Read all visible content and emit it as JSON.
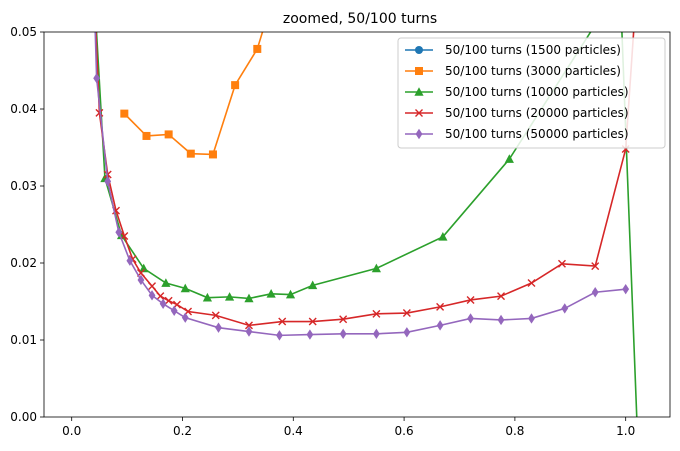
{
  "chart_data": {
    "type": "line",
    "title": "zoomed, 50/100 turns",
    "xlabel": "",
    "ylabel": "",
    "xlim": [
      -0.05,
      1.08
    ],
    "ylim": [
      0.0,
      0.05
    ],
    "x_ticks": [
      0.0,
      0.2,
      0.4,
      0.6,
      0.8,
      1.0
    ],
    "x_tick_labels": [
      "0.0",
      "0.2",
      "0.4",
      "0.6",
      "0.8",
      "1.0"
    ],
    "y_ticks": [
      0.0,
      0.01,
      0.02,
      0.03,
      0.04,
      0.05
    ],
    "y_tick_labels": [
      "0.00",
      "0.01",
      "0.02",
      "0.03",
      "0.04",
      "0.05"
    ],
    "grid": false,
    "legend_position": "top-right",
    "series": [
      {
        "name": "50/100 turns (1500 particles)",
        "color": "#1f77b4",
        "marker": "circle",
        "x": [],
        "y": []
      },
      {
        "name": "50/100 turns (3000 particles)",
        "color": "#ff7f0e",
        "marker": "square",
        "x": [
          0.095,
          0.135,
          0.175,
          0.215,
          0.255,
          0.295,
          0.335,
          0.37
        ],
        "y": [
          0.0394,
          0.0365,
          0.0367,
          0.0342,
          0.0341,
          0.0431,
          0.0478,
          0.056
        ]
      },
      {
        "name": "50/100 turns (10000 particles)",
        "color": "#2ca02c",
        "marker": "triangle",
        "x": [
          0.04,
          0.06,
          0.09,
          0.13,
          0.17,
          0.205,
          0.245,
          0.285,
          0.32,
          0.36,
          0.395,
          0.435,
          0.55,
          0.67,
          0.79,
          0.99,
          1.02
        ],
        "y": [
          0.056,
          0.031,
          0.0236,
          0.0193,
          0.0174,
          0.0167,
          0.0155,
          0.0156,
          0.0154,
          0.016,
          0.0159,
          0.0171,
          0.0193,
          0.0234,
          0.0335,
          0.056,
          0.0
        ]
      },
      {
        "name": "50/100 turns (20000 particles)",
        "color": "#d62728",
        "marker": "x",
        "x": [
          0.04,
          0.05,
          0.065,
          0.08,
          0.095,
          0.11,
          0.125,
          0.145,
          0.16,
          0.175,
          0.19,
          0.21,
          0.26,
          0.32,
          0.38,
          0.435,
          0.49,
          0.55,
          0.605,
          0.665,
          0.72,
          0.775,
          0.83,
          0.885,
          0.945,
          1.0,
          1.02
        ],
        "y": [
          0.056,
          0.0395,
          0.0315,
          0.0268,
          0.0235,
          0.0205,
          0.0187,
          0.017,
          0.0157,
          0.0151,
          0.0146,
          0.0137,
          0.0132,
          0.0119,
          0.0124,
          0.0124,
          0.0127,
          0.0134,
          0.0135,
          0.0143,
          0.0152,
          0.0157,
          0.0174,
          0.0199,
          0.0196,
          0.0348,
          0.056
        ]
      },
      {
        "name": "50/100 turns (50000 particles)",
        "color": "#9467bd",
        "marker": "diamond",
        "x": [
          0.04,
          0.045,
          0.065,
          0.085,
          0.105,
          0.125,
          0.145,
          0.165,
          0.185,
          0.205,
          0.265,
          0.32,
          0.375,
          0.43,
          0.49,
          0.55,
          0.605,
          0.665,
          0.72,
          0.775,
          0.83,
          0.89,
          0.945,
          1.0
        ],
        "y": [
          0.056,
          0.044,
          0.0306,
          0.024,
          0.0203,
          0.0178,
          0.0158,
          0.0147,
          0.0138,
          0.0129,
          0.0116,
          0.0111,
          0.0106,
          0.0107,
          0.0108,
          0.0108,
          0.011,
          0.0119,
          0.0128,
          0.0126,
          0.0128,
          0.0141,
          0.0162,
          0.0166
        ]
      }
    ]
  }
}
